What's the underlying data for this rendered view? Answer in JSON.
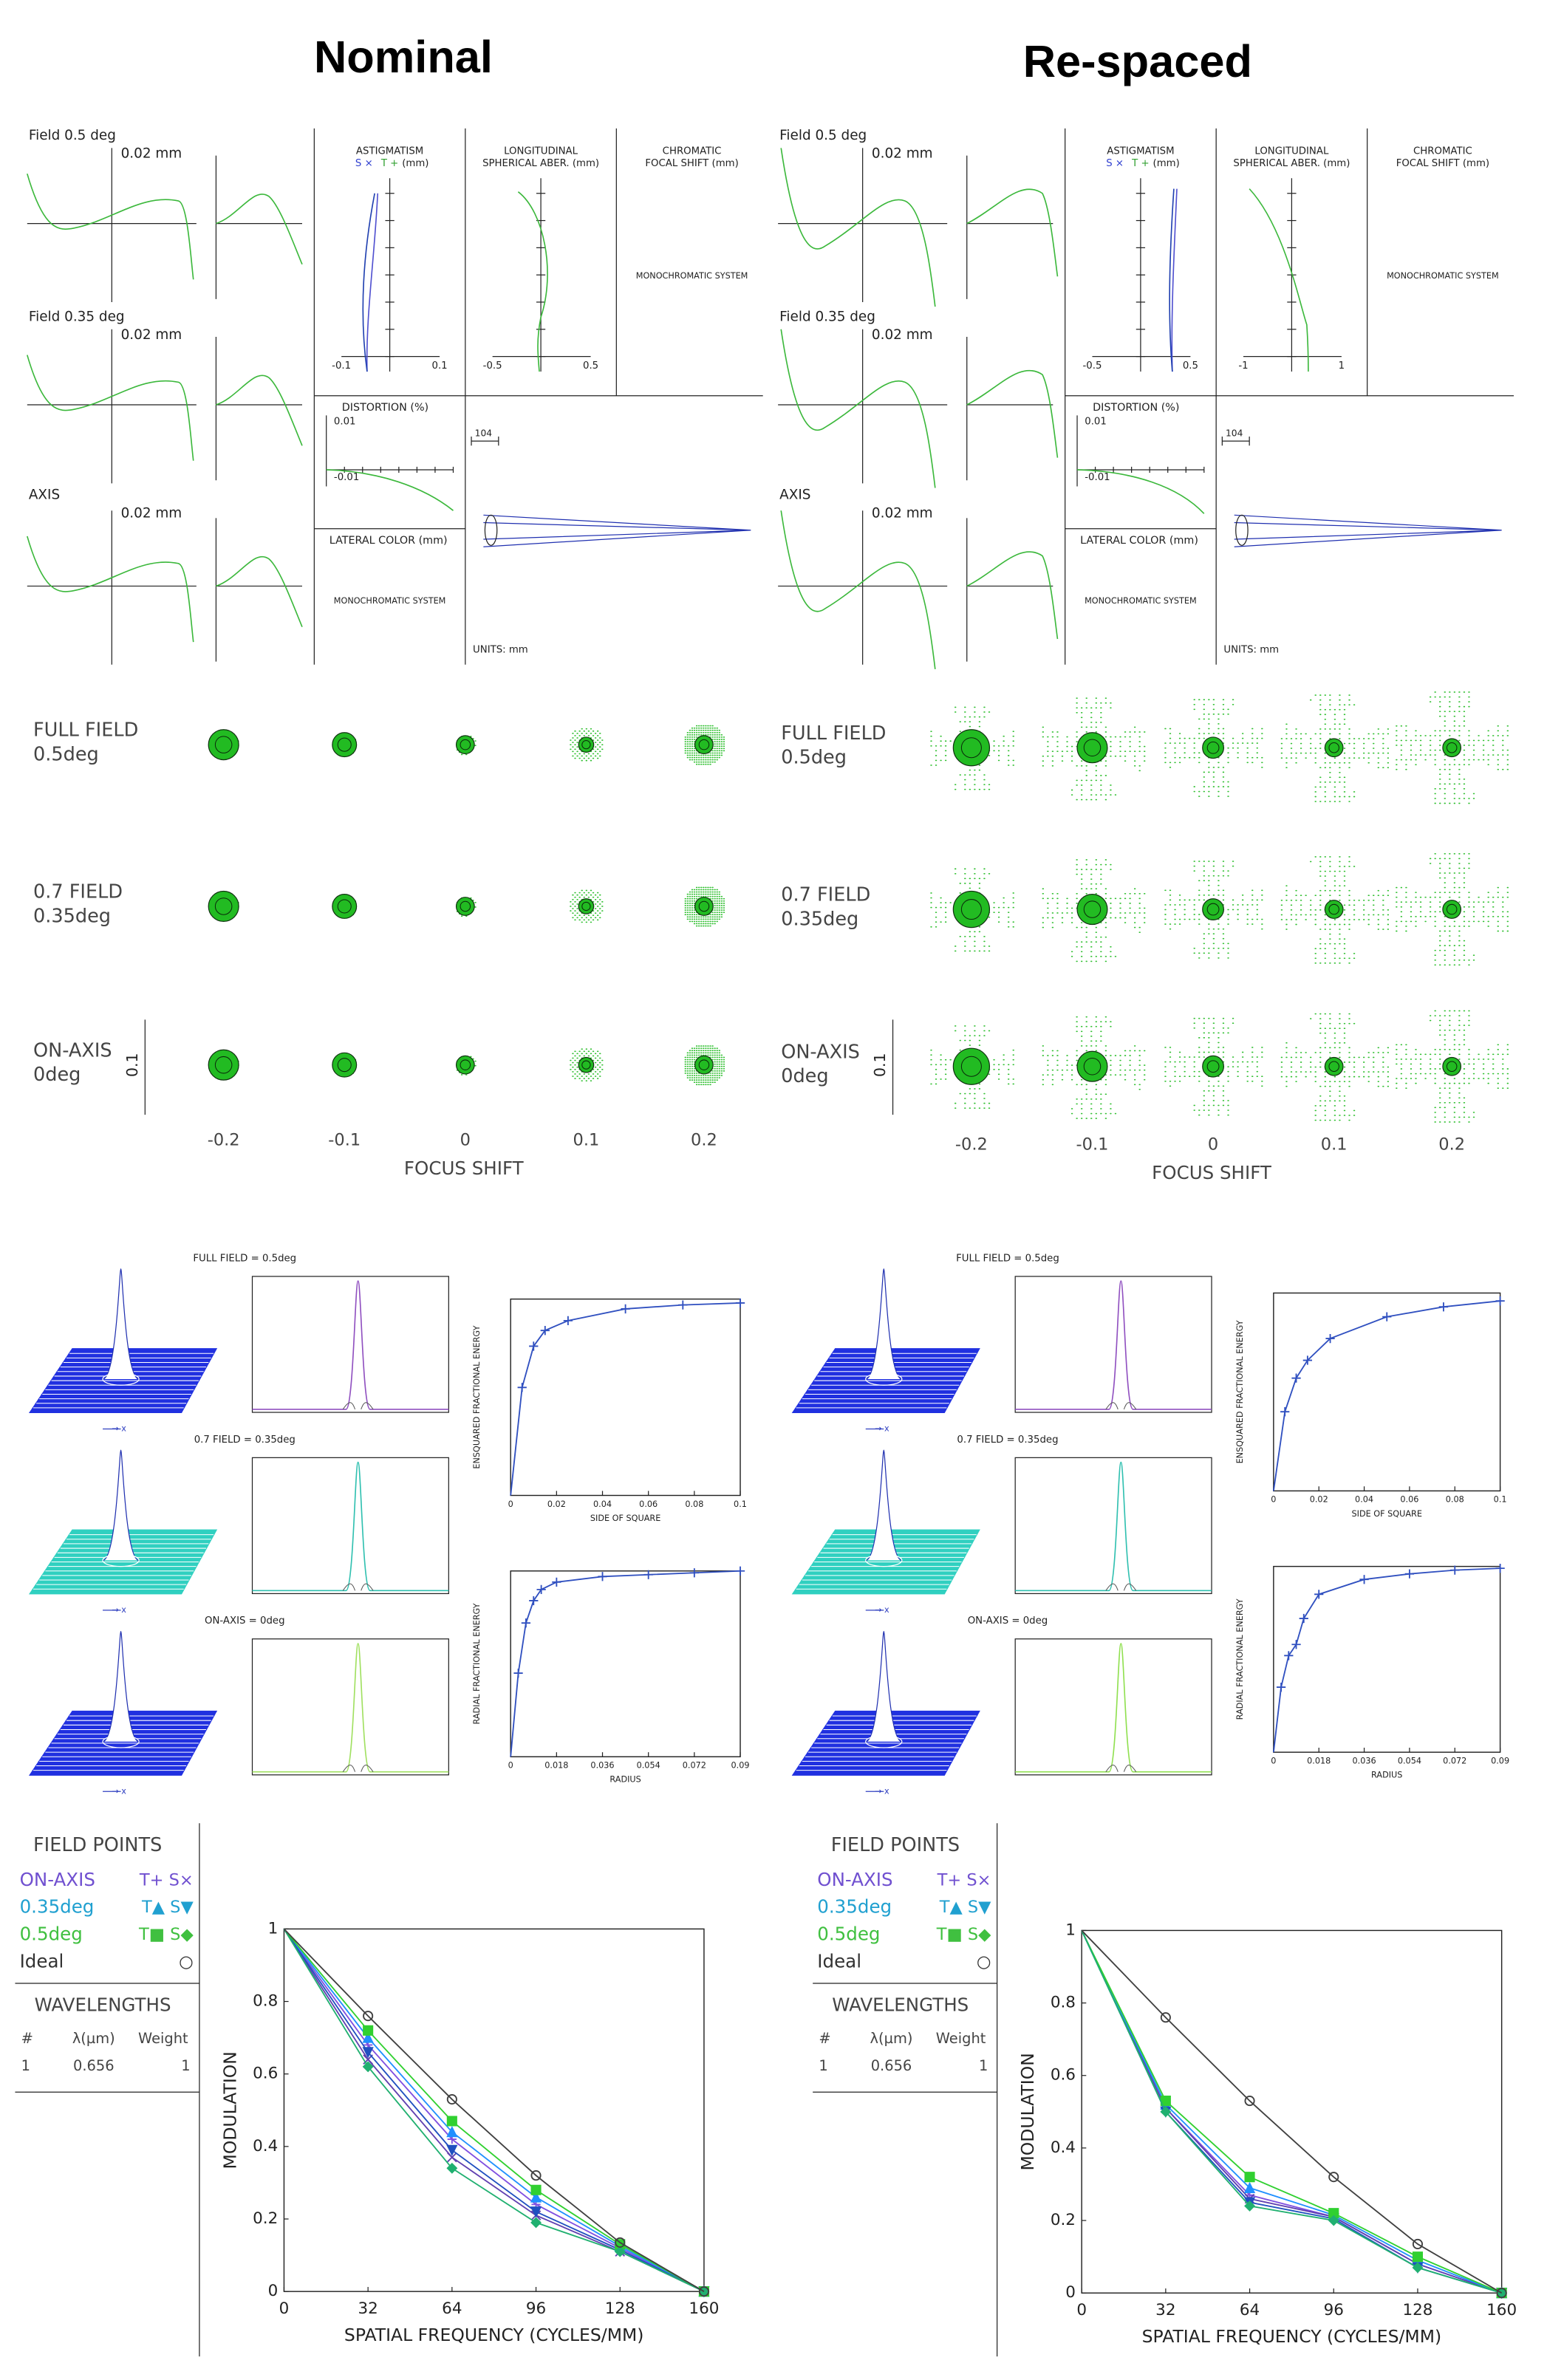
{
  "panels": [
    {
      "title": "Nominal",
      "ray_fan": {
        "fields": [
          "Field 0.5 deg",
          "Field 0.35 deg",
          "AXIS"
        ],
        "scale": [
          "0.02 mm",
          "0.02 mm",
          "0.02 mm"
        ]
      },
      "astigmatism": {
        "title": "ASTIGMATISM",
        "s": "S ×",
        "t": "T +",
        "unit": "(mm)",
        "ticks": [
          "-0.1",
          "0.1"
        ]
      },
      "spherical": {
        "title": [
          "LONGITUDINAL",
          "SPHERICAL ABER. (mm)"
        ],
        "ticks": [
          "-0.5",
          "0.5"
        ]
      },
      "chromatic": {
        "title": [
          "CHROMATIC",
          "FOCAL SHIFT (mm)"
        ],
        "note": "MONOCHROMATIC SYSTEM"
      },
      "distortion": {
        "title": "DISTORTION (%)",
        "ticks": [
          "0.01",
          "-0.01"
        ]
      },
      "lateral_color": {
        "title": "LATERAL COLOR (mm)",
        "note": "MONOCHROMATIC SYSTEM"
      },
      "layout": {
        "scale": "104",
        "units": "UNITS: mm"
      },
      "spot": {
        "rows": [
          [
            "FULL FIELD",
            "0.5deg"
          ],
          [
            "0.7 FIELD",
            "0.35deg"
          ],
          [
            "ON-AXIS",
            "0deg"
          ]
        ],
        "scale": "0.1",
        "focus": [
          "-0.2",
          "-0.1",
          "0",
          "0.1",
          "0.2"
        ],
        "xlabel": "FOCUS SHIFT"
      },
      "psf": {
        "rows": [
          "FULL FIELD = 0.5deg",
          "0.7 FIELD = 0.35deg",
          "ON-AXIS = 0deg"
        ],
        "arrow_label": "→ x"
      },
      "mtf_legend": {
        "title": "FIELD POINTS",
        "rows": [
          {
            "label": "ON-AXIS",
            "symbols": "T+  S×",
            "color": "#7050d0"
          },
          {
            "label": "0.35deg",
            "symbols": "T▲  S▼",
            "color": "#20a0d0"
          },
          {
            "label": "0.5deg",
            "symbols": "T■  S◆",
            "color": "#40c040"
          },
          {
            "label": "Ideal",
            "symbols": "○",
            "color": "#333333"
          }
        ]
      },
      "wavelengths": {
        "title": "WAVELENGTHS",
        "header": [
          "#",
          "λ(µm)",
          "Weight"
        ],
        "rows": [
          [
            "1",
            "0.656",
            "1"
          ]
        ]
      }
    },
    {
      "title": "Re-spaced",
      "ray_fan": {
        "fields": [
          "Field 0.5 deg",
          "Field 0.35 deg",
          "AXIS"
        ],
        "scale": [
          "0.02 mm",
          "0.02 mm",
          "0.02 mm"
        ]
      },
      "astigmatism": {
        "title": "ASTIGMATISM",
        "s": "S ×",
        "t": "T +",
        "unit": "(mm)",
        "ticks": [
          "-0.5",
          "0.5"
        ]
      },
      "spherical": {
        "title": [
          "LONGITUDINAL",
          "SPHERICAL ABER. (mm)"
        ],
        "ticks": [
          "-1",
          "1"
        ]
      },
      "chromatic": {
        "title": [
          "CHROMATIC",
          "FOCAL SHIFT (mm)"
        ],
        "note": "MONOCHROMATIC SYSTEM"
      },
      "distortion": {
        "title": "DISTORTION (%)",
        "ticks": [
          "0.01",
          "-0.01"
        ]
      },
      "lateral_color": {
        "title": "LATERAL COLOR (mm)",
        "note": "MONOCHROMATIC SYSTEM"
      },
      "layout": {
        "scale": "104",
        "units": "UNITS: mm"
      },
      "spot": {
        "rows": [
          [
            "FULL FIELD",
            "0.5deg"
          ],
          [
            "0.7 FIELD",
            "0.35deg"
          ],
          [
            "ON-AXIS",
            "0deg"
          ]
        ],
        "scale": "0.1",
        "focus": [
          "-0.2",
          "-0.1",
          "0",
          "0.1",
          "0.2"
        ],
        "xlabel": "FOCUS SHIFT"
      },
      "psf": {
        "rows": [
          "FULL FIELD = 0.5deg",
          "0.7 FIELD = 0.35deg",
          "ON-AXIS = 0deg"
        ],
        "arrow_label": "→ x"
      },
      "mtf_legend": {
        "title": "FIELD POINTS",
        "rows": [
          {
            "label": "ON-AXIS",
            "symbols": "T+  S×",
            "color": "#7050d0"
          },
          {
            "label": "0.35deg",
            "symbols": "T▲  S▼",
            "color": "#20a0d0"
          },
          {
            "label": "0.5deg",
            "symbols": "T■  S◆",
            "color": "#40c040"
          },
          {
            "label": "Ideal",
            "symbols": "○",
            "color": "#333333"
          }
        ]
      },
      "wavelengths": {
        "title": "WAVELENGTHS",
        "header": [
          "#",
          "λ(µm)",
          "Weight"
        ],
        "rows": [
          [
            "1",
            "0.656",
            "1"
          ]
        ]
      }
    }
  ],
  "chart_data": [
    {
      "type": "line",
      "ylabel": "MODULATION",
      "xlabel": "SPATIAL FREQUENCY (CYCLES/MM)",
      "x": [
        0,
        32,
        64,
        96,
        128,
        160
      ],
      "xlim": [
        0,
        160
      ],
      "ylim": [
        0,
        1
      ],
      "xticks": [
        0,
        32,
        64,
        96,
        128,
        160
      ],
      "yticks": [
        0,
        0.2,
        0.4,
        0.6,
        0.8,
        1
      ],
      "series": [
        {
          "color": "#8050e0",
          "marker": "plus",
          "values": [
            1,
            0.68,
            0.42,
            0.24,
            0.12,
            0
          ]
        },
        {
          "color": "#6040b0",
          "marker": "x",
          "values": [
            1,
            0.64,
            0.37,
            0.21,
            0.11,
            0
          ]
        },
        {
          "color": "#2090ff",
          "marker": "triangle-up",
          "values": [
            1,
            0.7,
            0.44,
            0.26,
            0.125,
            0
          ]
        },
        {
          "color": "#2050c0",
          "marker": "triangle-down",
          "values": [
            1,
            0.66,
            0.39,
            0.22,
            0.115,
            0
          ]
        },
        {
          "color": "#30d030",
          "marker": "square",
          "values": [
            1,
            0.72,
            0.47,
            0.28,
            0.13,
            0
          ]
        },
        {
          "color": "#20b070",
          "marker": "diamond",
          "values": [
            1,
            0.62,
            0.34,
            0.19,
            0.11,
            0
          ]
        },
        {
          "color": "#404040",
          "marker": "circle",
          "values": [
            1,
            0.76,
            0.53,
            0.32,
            0.135,
            0
          ]
        }
      ]
    },
    {
      "type": "line",
      "ylabel": "MODULATION",
      "xlabel": "SPATIAL FREQUENCY (CYCLES/MM)",
      "x": [
        0,
        32,
        64,
        96,
        128,
        160
      ],
      "xlim": [
        0,
        160
      ],
      "ylim": [
        0,
        1
      ],
      "xticks": [
        0,
        32,
        64,
        96,
        128,
        160
      ],
      "yticks": [
        0,
        0.2,
        0.4,
        0.6,
        0.8,
        1
      ],
      "series": [
        {
          "color": "#8050e0",
          "marker": "plus",
          "values": [
            1,
            0.51,
            0.27,
            0.21,
            0.08,
            0
          ]
        },
        {
          "color": "#6040b0",
          "marker": "x",
          "values": [
            1,
            0.51,
            0.26,
            0.21,
            0.08,
            0
          ]
        },
        {
          "color": "#2090ff",
          "marker": "triangle-up",
          "values": [
            1,
            0.52,
            0.29,
            0.215,
            0.09,
            0
          ]
        },
        {
          "color": "#2050c0",
          "marker": "triangle-down",
          "values": [
            1,
            0.5,
            0.25,
            0.205,
            0.07,
            0
          ]
        },
        {
          "color": "#30d030",
          "marker": "square",
          "values": [
            1,
            0.53,
            0.32,
            0.22,
            0.1,
            0
          ]
        },
        {
          "color": "#20b070",
          "marker": "diamond",
          "values": [
            1,
            0.5,
            0.24,
            0.2,
            0.07,
            0
          ]
        },
        {
          "color": "#404040",
          "marker": "circle",
          "values": [
            1,
            0.76,
            0.53,
            0.32,
            0.135,
            0
          ]
        }
      ]
    },
    {
      "type": "line",
      "ylabel": "ENSQUARED FRACTIONAL ENERGY",
      "xlabel": "SIDE OF SQUARE",
      "x": [
        0,
        0.005,
        0.01,
        0.015,
        0.025,
        0.05,
        0.075,
        0.1
      ],
      "xlim": [
        0,
        0.1
      ],
      "ylim": [
        0,
        1
      ],
      "xticks": [
        0,
        0.02,
        0.04,
        0.06,
        0.08,
        0.1
      ],
      "series": [
        {
          "color": "#3050c0",
          "marker": "plus",
          "values": [
            0,
            0.55,
            0.76,
            0.84,
            0.89,
            0.95,
            0.97,
            0.98
          ]
        }
      ]
    },
    {
      "type": "line",
      "ylabel": "RADIAL FRACTIONAL ENERGY",
      "xlabel": "RADIUS",
      "x": [
        0,
        0.003,
        0.006,
        0.009,
        0.012,
        0.018,
        0.036,
        0.054,
        0.072,
        0.09
      ],
      "xlim": [
        0,
        0.09
      ],
      "ylim": [
        0,
        1
      ],
      "xticks": [
        0,
        0.018,
        0.036,
        0.054,
        0.072,
        0.09
      ],
      "series": [
        {
          "color": "#3050c0",
          "marker": "plus",
          "values": [
            0,
            0.45,
            0.72,
            0.84,
            0.9,
            0.94,
            0.97,
            0.98,
            0.99,
            1
          ]
        }
      ]
    },
    {
      "type": "line",
      "ylabel": "ENSQUARED FRACTIONAL ENERGY",
      "xlabel": "SIDE OF SQUARE",
      "x": [
        0,
        0.005,
        0.01,
        0.015,
        0.025,
        0.05,
        0.075,
        0.1
      ],
      "xlim": [
        0,
        0.1
      ],
      "ylim": [
        0,
        1
      ],
      "xticks": [
        0,
        0.02,
        0.04,
        0.06,
        0.08,
        0.1
      ],
      "series": [
        {
          "color": "#3050c0",
          "marker": "plus",
          "values": [
            0,
            0.4,
            0.57,
            0.66,
            0.77,
            0.88,
            0.93,
            0.96
          ]
        }
      ]
    },
    {
      "type": "line",
      "ylabel": "RADIAL FRACTIONAL ENERGY",
      "xlabel": "RADIUS",
      "x": [
        0,
        0.003,
        0.006,
        0.009,
        0.012,
        0.018,
        0.036,
        0.054,
        0.072,
        0.09
      ],
      "xlim": [
        0,
        0.09
      ],
      "ylim": [
        0,
        1
      ],
      "xticks": [
        0,
        0.018,
        0.036,
        0.054,
        0.072,
        0.09
      ],
      "series": [
        {
          "color": "#3050c0",
          "marker": "plus",
          "values": [
            0,
            0.35,
            0.52,
            0.58,
            0.72,
            0.85,
            0.93,
            0.96,
            0.98,
            0.99
          ]
        }
      ]
    }
  ]
}
